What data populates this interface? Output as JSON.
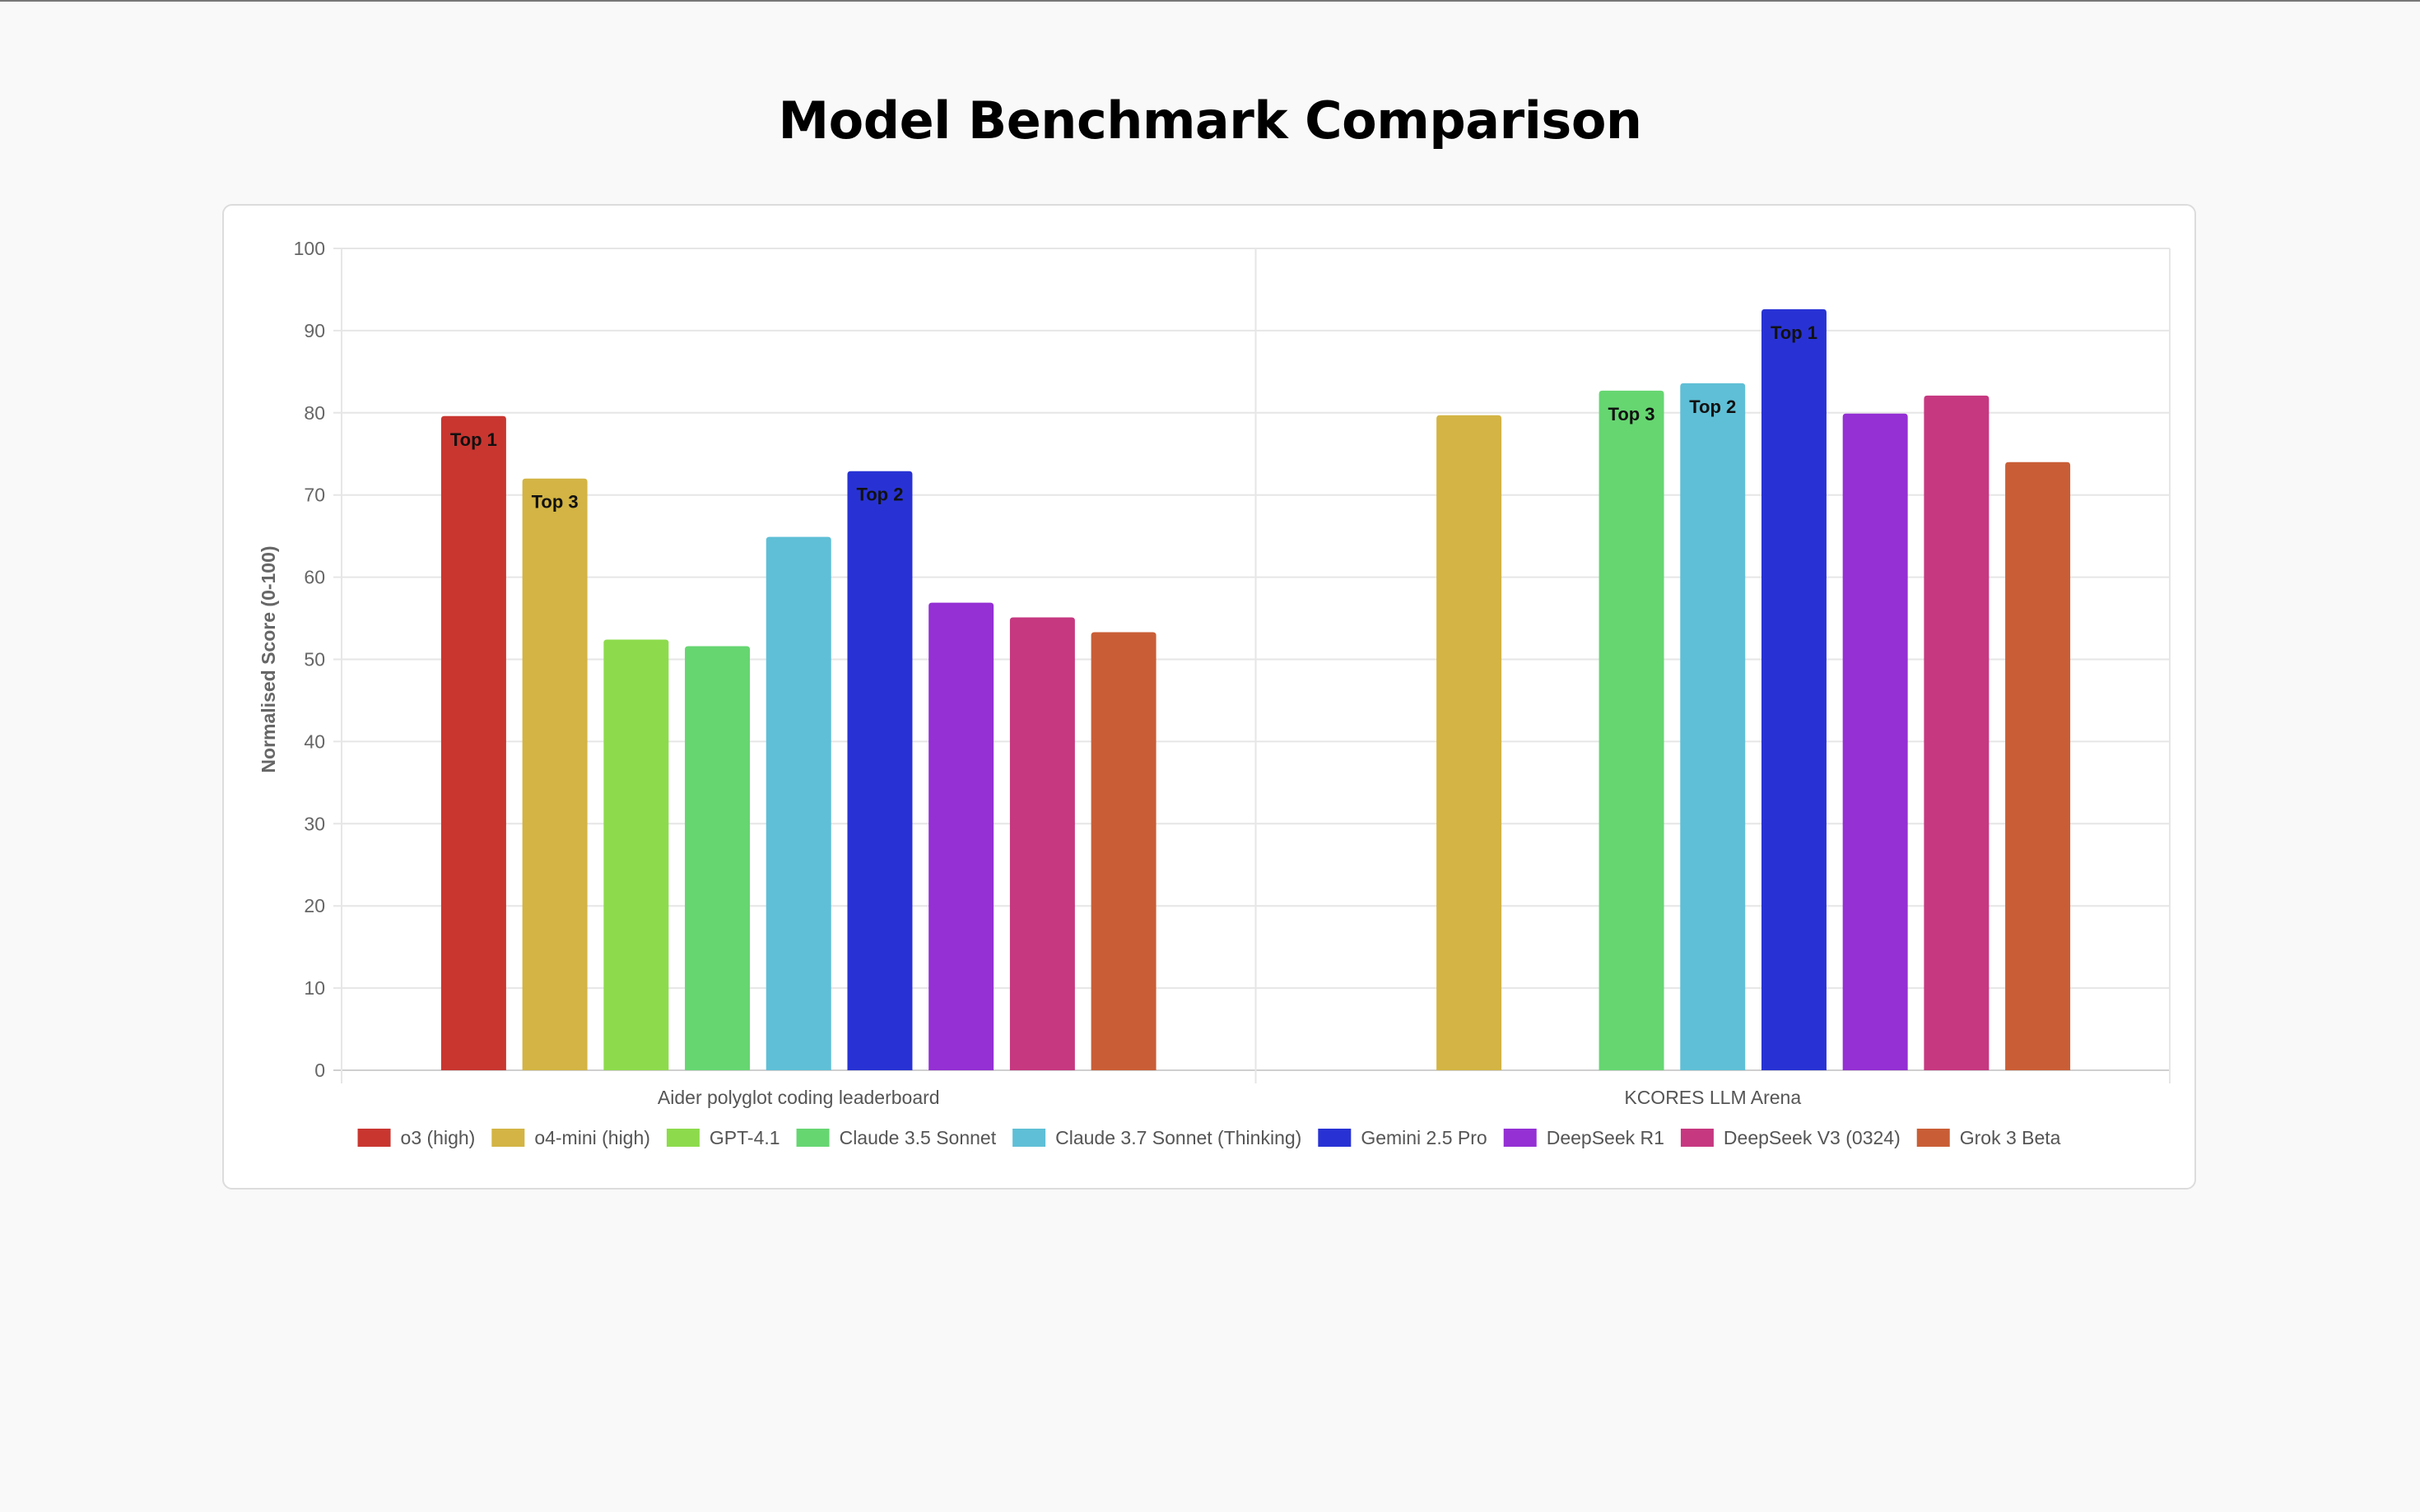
{
  "page": {
    "title": "Model Benchmark Comparison"
  },
  "chart_data": {
    "type": "bar",
    "title": "",
    "xlabel": "",
    "ylabel": "Normalised Score (0-100)",
    "ylim": [
      0,
      100
    ],
    "yticks": [
      0,
      10,
      20,
      30,
      40,
      50,
      60,
      70,
      80,
      90,
      100
    ],
    "grid": true,
    "legend_position": "bottom",
    "categories": [
      "Aider polyglot coding leaderboard",
      "KCORES LLM Arena"
    ],
    "series": [
      {
        "name": "o3 (high)",
        "color": "#c93630",
        "values": [
          79.6,
          null
        ],
        "labels": [
          "Top 1",
          null
        ]
      },
      {
        "name": "o4-mini (high)",
        "color": "#d3b444",
        "values": [
          72.0,
          79.7
        ],
        "labels": [
          "Top 3",
          null
        ]
      },
      {
        "name": "GPT-4.1",
        "color": "#8ddb4c",
        "values": [
          52.4,
          null
        ],
        "labels": [
          null,
          null
        ]
      },
      {
        "name": "Claude 3.5 Sonnet",
        "color": "#66d671",
        "values": [
          51.6,
          82.7
        ],
        "labels": [
          null,
          "Top 3"
        ]
      },
      {
        "name": "Claude 3.7 Sonnet (Thinking)",
        "color": "#5fbfd6",
        "values": [
          64.9,
          83.6
        ],
        "labels": [
          null,
          "Top 2"
        ]
      },
      {
        "name": "Gemini 2.5 Pro",
        "color": "#2832d4",
        "values": [
          72.9,
          92.6
        ],
        "labels": [
          "Top 2",
          "Top 1"
        ]
      },
      {
        "name": "DeepSeek R1",
        "color": "#9430d4",
        "values": [
          56.9,
          79.9
        ],
        "labels": [
          null,
          null
        ]
      },
      {
        "name": "DeepSeek V3 (0324)",
        "color": "#c63880",
        "values": [
          55.1,
          82.1
        ],
        "labels": [
          null,
          null
        ]
      },
      {
        "name": "Grok 3 Beta",
        "color": "#c95e36",
        "values": [
          53.3,
          74.0
        ],
        "labels": [
          null,
          null
        ]
      }
    ]
  }
}
